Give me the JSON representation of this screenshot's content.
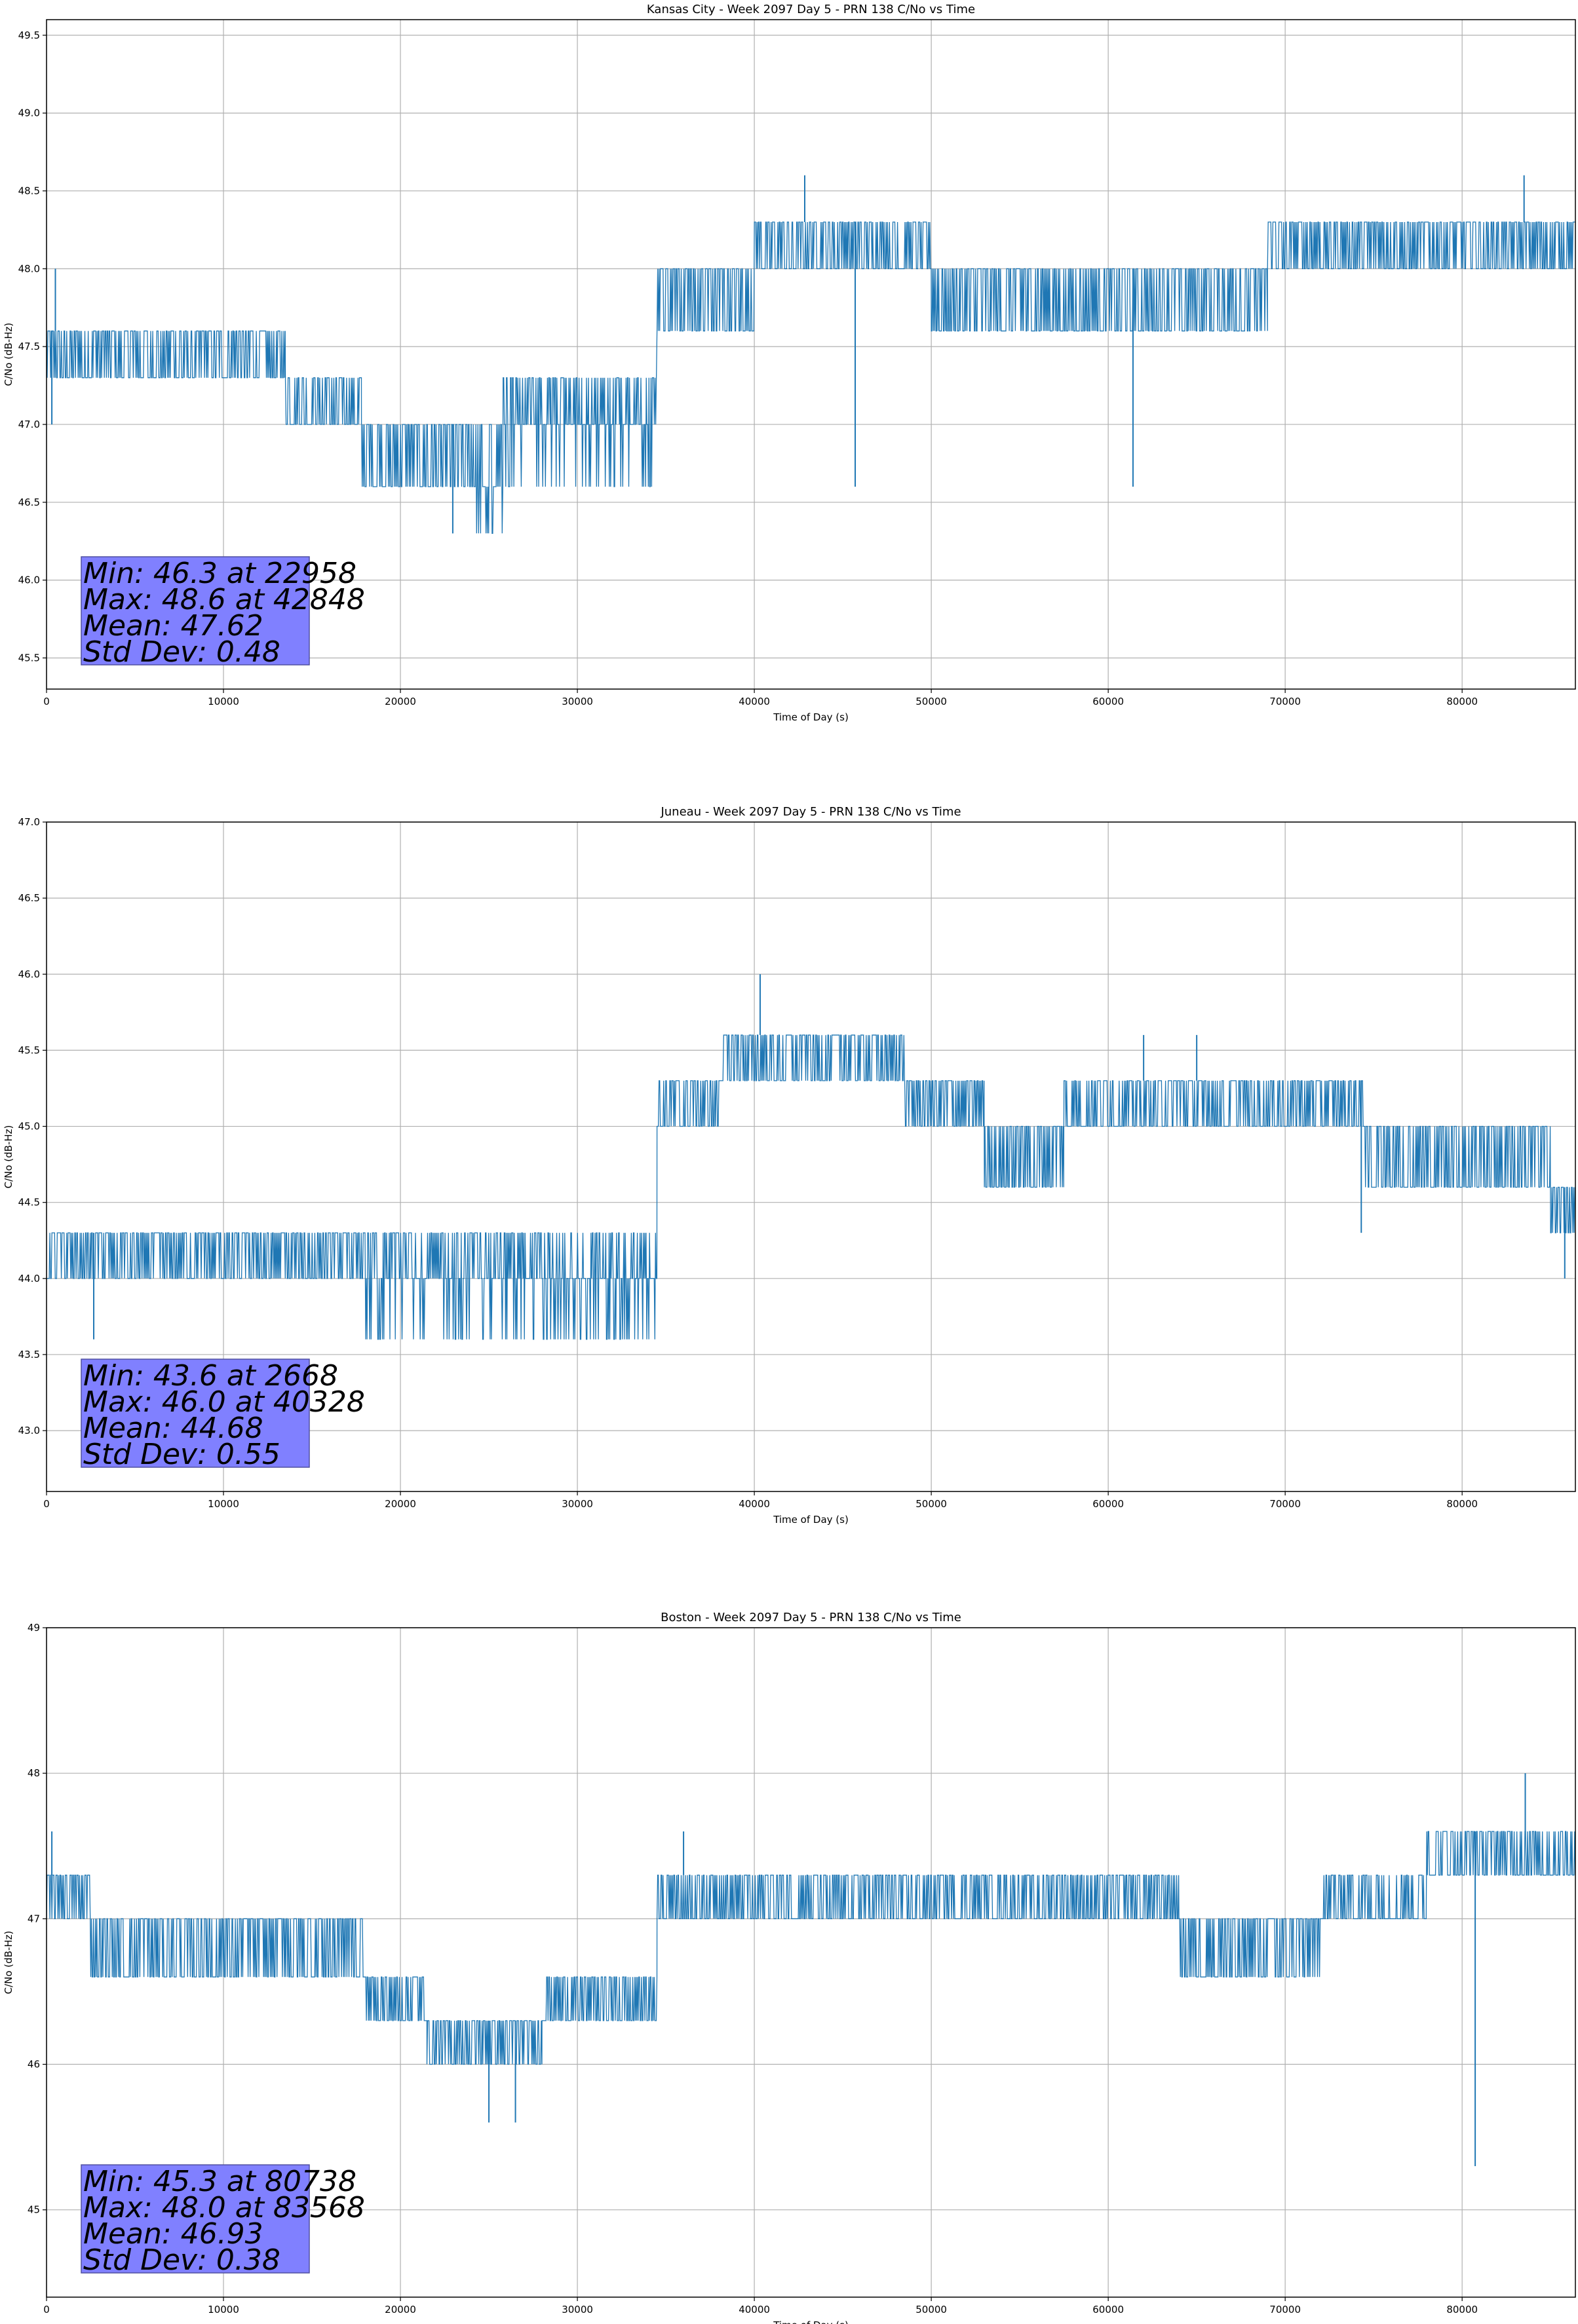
{
  "chart_data": [
    {
      "type": "line",
      "title": "Kansas City - Week 2097 Day 5 - PRN 138 C/No vs Time",
      "xlabel": "Time of Day (s)",
      "ylabel": "C/No (dB-Hz)",
      "xlim": [
        0,
        86400
      ],
      "ylim": [
        45.3,
        49.6
      ],
      "xticks": [
        0,
        10000,
        20000,
        30000,
        40000,
        50000,
        60000,
        70000,
        80000
      ],
      "yticks": [
        45.5,
        46.0,
        46.5,
        47.0,
        47.5,
        48.0,
        48.5,
        49.0,
        49.5
      ],
      "ytick_labels": [
        "45.5",
        "46.0",
        "46.5",
        "47.0",
        "47.5",
        "48.0",
        "48.5",
        "49.0",
        "49.5"
      ],
      "grid": true,
      "color": "#1f77b4",
      "stats": [
        "Min: 46.3 at 22958",
        "Max: 48.6 at 42848",
        "Mean: 47.62",
        "Std Dev: 0.48"
      ],
      "segments": [
        {
          "x": [
            0,
            13500
          ],
          "levels": [
            47.3,
            47.6
          ]
        },
        {
          "x": [
            13500,
            17800
          ],
          "levels": [
            47.0,
            47.3
          ]
        },
        {
          "x": [
            17800,
            24000
          ],
          "levels": [
            46.6,
            47.0
          ]
        },
        {
          "x": [
            24000,
            25800
          ],
          "levels": [
            46.3,
            46.6,
            47.0
          ]
        },
        {
          "x": [
            25800,
            34500
          ],
          "levels": [
            46.6,
            47.0,
            47.3
          ]
        },
        {
          "x": [
            34500,
            40000
          ],
          "levels": [
            47.6,
            48.0
          ]
        },
        {
          "x": [
            40000,
            50000
          ],
          "levels": [
            48.0,
            48.3
          ]
        },
        {
          "x": [
            50000,
            69000
          ],
          "levels": [
            47.6,
            48.0
          ]
        },
        {
          "x": [
            69000,
            77000
          ],
          "levels": [
            48.0,
            48.3
          ]
        },
        {
          "x": [
            77000,
            86400
          ],
          "levels": [
            48.0,
            48.3
          ]
        }
      ],
      "spikes": [
        [
          42848,
          48.6
        ],
        [
          83500,
          48.6
        ],
        [
          45700,
          46.6
        ],
        [
          61400,
          46.6
        ],
        [
          22958,
          46.3
        ],
        [
          500,
          48.0
        ],
        [
          300,
          47.0
        ]
      ]
    },
    {
      "type": "line",
      "title": "Juneau - Week 2097 Day 5 - PRN 138 C/No vs Time",
      "xlabel": "Time of Day (s)",
      "ylabel": "C/No (dB-Hz)",
      "xlim": [
        0,
        86400
      ],
      "ylim": [
        42.6,
        47.0
      ],
      "xticks": [
        0,
        10000,
        20000,
        30000,
        40000,
        50000,
        60000,
        70000,
        80000
      ],
      "yticks": [
        43.0,
        43.5,
        44.0,
        44.5,
        45.0,
        45.5,
        46.0,
        46.5,
        47.0
      ],
      "ytick_labels": [
        "43.0",
        "43.5",
        "44.0",
        "44.5",
        "45.0",
        "45.5",
        "46.0",
        "46.5",
        "47.0"
      ],
      "grid": true,
      "color": "#1f77b4",
      "stats": [
        "Min: 43.6 at 2668",
        "Max: 46.0 at 40328",
        "Mean: 44.68",
        "Std Dev: 0.55"
      ],
      "segments": [
        {
          "x": [
            0,
            18000
          ],
          "levels": [
            44.0,
            44.3
          ]
        },
        {
          "x": [
            18000,
            34500
          ],
          "levels": [
            43.6,
            44.0,
            44.3
          ]
        },
        {
          "x": [
            34500,
            38000
          ],
          "levels": [
            45.0,
            45.3
          ]
        },
        {
          "x": [
            38000,
            48500
          ],
          "levels": [
            45.3,
            45.6
          ]
        },
        {
          "x": [
            48500,
            53000
          ],
          "levels": [
            45.0,
            45.3
          ]
        },
        {
          "x": [
            53000,
            57500
          ],
          "levels": [
            44.6,
            45.0
          ]
        },
        {
          "x": [
            57500,
            74500
          ],
          "levels": [
            45.0,
            45.3
          ]
        },
        {
          "x": [
            74500,
            80000
          ],
          "levels": [
            44.6,
            45.0
          ]
        },
        {
          "x": [
            80000,
            85000
          ],
          "levels": [
            44.6,
            45.0
          ]
        },
        {
          "x": [
            85000,
            86400
          ],
          "levels": [
            44.3,
            44.6
          ]
        }
      ],
      "spikes": [
        [
          40328,
          46.0
        ],
        [
          2668,
          43.6
        ],
        [
          74300,
          44.3
        ],
        [
          85800,
          44.0
        ],
        [
          62000,
          45.6
        ],
        [
          65000,
          45.6
        ]
      ]
    },
    {
      "type": "line",
      "title": "Boston - Week 2097 Day 5 - PRN 138 C/No vs Time",
      "xlabel": "Time of Day (s)",
      "ylabel": "C/No (dB-Hz)",
      "xlim": [
        0,
        86400
      ],
      "ylim": [
        44.4,
        49.0
      ],
      "xticks": [
        0,
        10000,
        20000,
        30000,
        40000,
        50000,
        60000,
        70000,
        80000
      ],
      "yticks": [
        45,
        46,
        47,
        48,
        49
      ],
      "ytick_labels": [
        "45",
        "46",
        "47",
        "48",
        "49"
      ],
      "grid": true,
      "color": "#1f77b4",
      "stats": [
        "Min: 45.3 at 80738",
        "Max: 48.0 at 83568",
        "Mean: 46.93",
        "Std Dev: 0.38"
      ],
      "segments": [
        {
          "x": [
            0,
            2500
          ],
          "levels": [
            47.0,
            47.3
          ]
        },
        {
          "x": [
            2500,
            18000
          ],
          "levels": [
            46.6,
            47.0
          ]
        },
        {
          "x": [
            18000,
            21500
          ],
          "levels": [
            46.3,
            46.6
          ]
        },
        {
          "x": [
            21500,
            28000
          ],
          "levels": [
            46.0,
            46.3
          ]
        },
        {
          "x": [
            28000,
            34500
          ],
          "levels": [
            46.3,
            46.6
          ]
        },
        {
          "x": [
            34500,
            59000
          ],
          "levels": [
            47.0,
            47.3
          ]
        },
        {
          "x": [
            59000,
            64000
          ],
          "levels": [
            47.0,
            47.3
          ]
        },
        {
          "x": [
            64000,
            72000
          ],
          "levels": [
            46.6,
            47.0
          ]
        },
        {
          "x": [
            72000,
            78000
          ],
          "levels": [
            47.0,
            47.3
          ]
        },
        {
          "x": [
            78000,
            86400
          ],
          "levels": [
            47.3,
            47.6
          ]
        }
      ],
      "spikes": [
        [
          80738,
          45.3
        ],
        [
          83568,
          48.0
        ],
        [
          25000,
          45.6
        ],
        [
          26500,
          45.6
        ],
        [
          300,
          47.6
        ],
        [
          36000,
          47.6
        ]
      ]
    }
  ]
}
